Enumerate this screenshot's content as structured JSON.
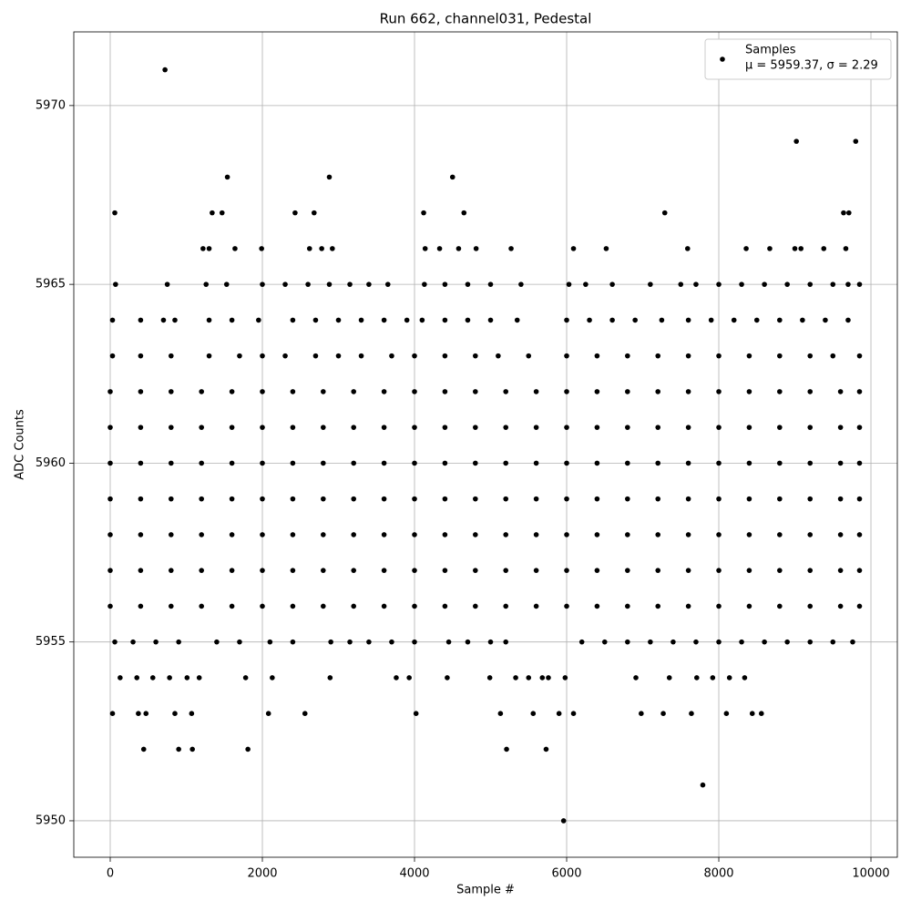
{
  "chart_data": {
    "type": "scatter",
    "title": "Run 662, channel031, Pedestal",
    "xlabel": "Sample #",
    "ylabel": "ADC Counts",
    "xlim": [
      -479,
      10347
    ],
    "ylim": [
      5948.98,
      5972.06
    ],
    "xticks": [
      0,
      2000,
      4000,
      6000,
      8000,
      10000
    ],
    "yticks": [
      5950,
      5955,
      5960,
      5965,
      5970
    ],
    "grid": true,
    "legend": "upper right",
    "legend_note": "μ = 5959.37, σ = 2.29",
    "series": [
      {
        "name": "Samples",
        "color": "#000000",
        "x": [
          720,
          5960,
          7790,
          9020,
          9800,
          1540,
          2880,
          4500,
          60,
          1340,
          1470,
          2430,
          2680,
          4120,
          4650,
          7290,
          9640,
          9710,
          440,
          900,
          1080,
          1810,
          5210,
          5730,
          30,
          370,
          470,
          850,
          1070,
          2080,
          2560,
          4020,
          5130,
          5560,
          5900,
          6090,
          6980,
          7270,
          7640,
          8100,
          8440,
          8560,
          130,
          350,
          560,
          780,
          1010,
          1170,
          1780,
          2130,
          2890,
          3760,
          3930,
          4430,
          4990,
          5330,
          5500,
          5680,
          5760,
          5980,
          6910,
          7350,
          7710,
          7920,
          8140,
          8340,
          1220,
          1300,
          1640,
          1990,
          2620,
          2780,
          2920,
          4140,
          4330,
          4580,
          4810,
          5270,
          6090,
          6520,
          7590,
          8360,
          8670,
          9000,
          9080,
          9380,
          9670,
          70,
          750,
          1260,
          1530,
          2000,
          2300,
          2600,
          2880,
          3150,
          3400,
          3650,
          4130,
          4400,
          4700,
          5000,
          5400,
          6030,
          6250,
          6600,
          7100,
          7500,
          7700,
          8000,
          8300,
          8600,
          8900,
          9200,
          9500,
          9700,
          9850,
          60,
          300,
          600,
          900,
          1400,
          1700,
          2100,
          2400,
          2900,
          3150,
          3400,
          3700,
          4000,
          4450,
          4700,
          5000,
          5200,
          6200,
          6500,
          6800,
          7100,
          7400,
          7700,
          8000,
          8300,
          8600,
          8900,
          9200,
          9500,
          9760,
          30,
          400,
          700,
          850,
          1300,
          1600,
          1950,
          2400,
          2700,
          3000,
          3300,
          3600,
          3900,
          4100,
          4400,
          4700,
          5000,
          5350,
          6000,
          6300,
          6600,
          6900,
          7250,
          7600,
          7900,
          8200,
          8500,
          8800,
          9100,
          9400,
          9700,
          30,
          400,
          800,
          1300,
          1700,
          2000,
          2300,
          2700,
          3000,
          3300,
          3700,
          4000,
          4400,
          4800,
          5100,
          5500,
          6000,
          6400,
          6800,
          7200,
          7600,
          8000,
          8400,
          8800,
          9200,
          9500,
          9850,
          0,
          400,
          800,
          1200,
          1600,
          2000,
          2400,
          2800,
          3200,
          3600,
          4000,
          4400,
          4800,
          5200,
          5600,
          6000,
          6400,
          6800,
          7200,
          7600,
          8000,
          8400,
          8800,
          9200,
          9600,
          9850,
          0,
          400,
          800,
          1200,
          1600,
          2000,
          2400,
          2800,
          3200,
          3600,
          4000,
          4400,
          4800,
          5200,
          5600,
          6000,
          6400,
          6800,
          7200,
          7600,
          8000,
          8400,
          8800,
          9200,
          9600,
          9850,
          0,
          400,
          800,
          1200,
          1600,
          2000,
          2400,
          2800,
          3200,
          3600,
          4000,
          4400,
          4800,
          5200,
          5600,
          6000,
          6400,
          6800,
          7200,
          7600,
          8000,
          8400,
          8800,
          9200,
          9600,
          9850,
          0,
          400,
          800,
          1200,
          1600,
          2000,
          2400,
          2800,
          3200,
          3600,
          4000,
          4400,
          4800,
          5200,
          5600,
          6000,
          6400,
          6800,
          7200,
          7600,
          8000,
          8400,
          8800,
          9200,
          9600,
          9850,
          0,
          400,
          800,
          1200,
          1600,
          2000,
          2400,
          2800,
          3200,
          3600,
          4000,
          4400,
          4800,
          5200,
          5600,
          6000,
          6400,
          6800,
          7200,
          7600,
          8000,
          8400,
          8800,
          9200,
          9600,
          9850,
          0,
          400,
          800,
          1200,
          1600,
          2000,
          2400,
          2800,
          3200,
          3600,
          4000,
          4400,
          4800,
          5200,
          5600,
          6000,
          6400,
          6800,
          7200,
          7600,
          8000,
          8400,
          8800,
          9200,
          9600,
          9850,
          0,
          400,
          800,
          1200,
          1600,
          2000,
          2400,
          2800,
          3200,
          3600,
          4000,
          4400,
          4800,
          5200,
          5600,
          6000,
          6400,
          6800,
          7200,
          7600,
          8000,
          8400,
          8800,
          9200,
          9600,
          9850
        ],
        "values": [
          5971,
          5950,
          5951,
          5969,
          5969,
          5968,
          5968,
          5968,
          5967,
          5967,
          5967,
          5967,
          5967,
          5967,
          5967,
          5967,
          5967,
          5967,
          5952,
          5952,
          5952,
          5952,
          5952,
          5952,
          5953,
          5953,
          5953,
          5953,
          5953,
          5953,
          5953,
          5953,
          5953,
          5953,
          5953,
          5953,
          5953,
          5953,
          5953,
          5953,
          5953,
          5953,
          5954,
          5954,
          5954,
          5954,
          5954,
          5954,
          5954,
          5954,
          5954,
          5954,
          5954,
          5954,
          5954,
          5954,
          5954,
          5954,
          5954,
          5954,
          5954,
          5954,
          5954,
          5954,
          5954,
          5954,
          5966,
          5966,
          5966,
          5966,
          5966,
          5966,
          5966,
          5966,
          5966,
          5966,
          5966,
          5966,
          5966,
          5966,
          5966,
          5966,
          5966,
          5966,
          5966,
          5966,
          5966,
          5965,
          5965,
          5965,
          5965,
          5965,
          5965,
          5965,
          5965,
          5965,
          5965,
          5965,
          5965,
          5965,
          5965,
          5965,
          5965,
          5965,
          5965,
          5965,
          5965,
          5965,
          5965,
          5965,
          5965,
          5965,
          5965,
          5965,
          5965,
          5965,
          5965,
          5955,
          5955,
          5955,
          5955,
          5955,
          5955,
          5955,
          5955,
          5955,
          5955,
          5955,
          5955,
          5955,
          5955,
          5955,
          5955,
          5955,
          5955,
          5955,
          5955,
          5955,
          5955,
          5955,
          5955,
          5955,
          5955,
          5955,
          5955,
          5955,
          5955,
          5964,
          5964,
          5964,
          5964,
          5964,
          5964,
          5964,
          5964,
          5964,
          5964,
          5964,
          5964,
          5964,
          5964,
          5964,
          5964,
          5964,
          5964,
          5964,
          5964,
          5964,
          5964,
          5964,
          5964,
          5964,
          5964,
          5964,
          5964,
          5964,
          5964,
          5964,
          5963,
          5963,
          5963,
          5963,
          5963,
          5963,
          5963,
          5963,
          5963,
          5963,
          5963,
          5963,
          5963,
          5963,
          5963,
          5963,
          5963,
          5963,
          5963,
          5963,
          5963,
          5963,
          5963,
          5963,
          5963,
          5963,
          5963,
          5956,
          5956,
          5956,
          5956,
          5956,
          5956,
          5956,
          5956,
          5956,
          5956,
          5956,
          5956,
          5956,
          5956,
          5956,
          5956,
          5956,
          5956,
          5956,
          5956,
          5956,
          5956,
          5956,
          5956,
          5956,
          5956,
          5957,
          5957,
          5957,
          5957,
          5957,
          5957,
          5957,
          5957,
          5957,
          5957,
          5957,
          5957,
          5957,
          5957,
          5957,
          5957,
          5957,
          5957,
          5957,
          5957,
          5957,
          5957,
          5957,
          5957,
          5957,
          5957,
          5958,
          5958,
          5958,
          5958,
          5958,
          5958,
          5958,
          5958,
          5958,
          5958,
          5958,
          5958,
          5958,
          5958,
          5958,
          5958,
          5958,
          5958,
          5958,
          5958,
          5958,
          5958,
          5958,
          5958,
          5958,
          5958,
          5959,
          5959,
          5959,
          5959,
          5959,
          5959,
          5959,
          5959,
          5959,
          5959,
          5959,
          5959,
          5959,
          5959,
          5959,
          5959,
          5959,
          5959,
          5959,
          5959,
          5959,
          5959,
          5959,
          5959,
          5959,
          5959,
          5960,
          5960,
          5960,
          5960,
          5960,
          5960,
          5960,
          5960,
          5960,
          5960,
          5960,
          5960,
          5960,
          5960,
          5960,
          5960,
          5960,
          5960,
          5960,
          5960,
          5960,
          5960,
          5960,
          5960,
          5960,
          5960,
          5961,
          5961,
          5961,
          5961,
          5961,
          5961,
          5961,
          5961,
          5961,
          5961,
          5961,
          5961,
          5961,
          5961,
          5961,
          5961,
          5961,
          5961,
          5961,
          5961,
          5961,
          5961,
          5961,
          5961,
          5961,
          5961,
          5962,
          5962,
          5962,
          5962,
          5962,
          5962,
          5962,
          5962,
          5962,
          5962,
          5962,
          5962,
          5962,
          5962,
          5962,
          5962,
          5962,
          5962,
          5962,
          5962,
          5962,
          5962,
          5962,
          5962,
          5962,
          5962
        ]
      }
    ]
  }
}
